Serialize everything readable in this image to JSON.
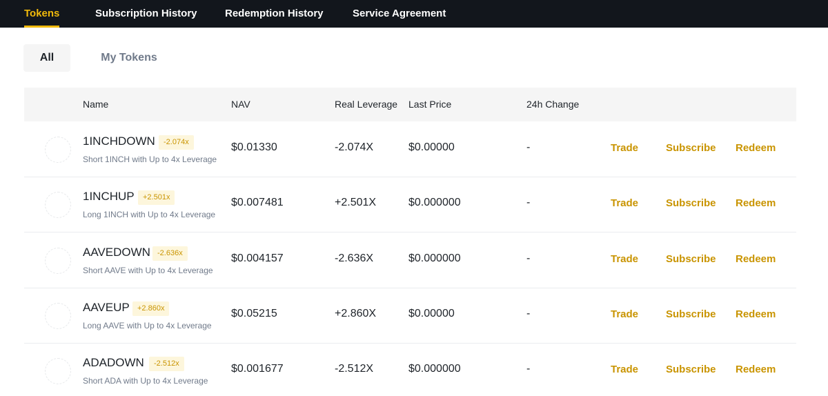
{
  "nav": {
    "tabs": [
      {
        "label": "Tokens",
        "active": true
      },
      {
        "label": "Subscription History",
        "active": false
      },
      {
        "label": "Redemption History",
        "active": false
      },
      {
        "label": "Service Agreement",
        "active": false
      }
    ]
  },
  "subtabs": {
    "all": "All",
    "my_tokens": "My Tokens"
  },
  "table": {
    "headers": {
      "name": "Name",
      "nav": "NAV",
      "real_leverage": "Real Leverage",
      "last_price": "Last Price",
      "change_24h": "24h Change"
    },
    "actions": {
      "trade": "Trade",
      "subscribe": "Subscribe",
      "redeem": "Redeem"
    },
    "rows": [
      {
        "name": "1INCHDOWN",
        "badge": "-2.074x",
        "description": "Short 1INCH with Up to 4x Leverage",
        "nav": "$0.01330",
        "real_leverage": "-2.074X",
        "last_price": "$0.00000",
        "change_24h": "-"
      },
      {
        "name": "1INCHUP",
        "badge": "+2.501x",
        "description": "Long 1INCH with Up to 4x Leverage",
        "nav": "$0.007481",
        "real_leverage": "+2.501X",
        "last_price": "$0.000000",
        "change_24h": "-"
      },
      {
        "name": "AAVEDOWN",
        "badge": "-2.636x",
        "description": "Short AAVE with Up to 4x Leverage",
        "nav": "$0.004157",
        "real_leverage": "-2.636X",
        "last_price": "$0.000000",
        "change_24h": "-"
      },
      {
        "name": "AAVEUP",
        "badge": "+2.860x",
        "description": "Long AAVE with Up to 4x Leverage",
        "nav": "$0.05215",
        "real_leverage": "+2.860X",
        "last_price": "$0.00000",
        "change_24h": "-"
      },
      {
        "name": "ADADOWN",
        "badge": "-2.512x",
        "description": "Short ADA with Up to 4x Leverage",
        "nav": "$0.001677",
        "real_leverage": "-2.512X",
        "last_price": "$0.000000",
        "change_24h": "-"
      }
    ]
  },
  "colors": {
    "accent": "#f0b90b",
    "action": "#c99400",
    "nav_bg": "#12161c"
  }
}
